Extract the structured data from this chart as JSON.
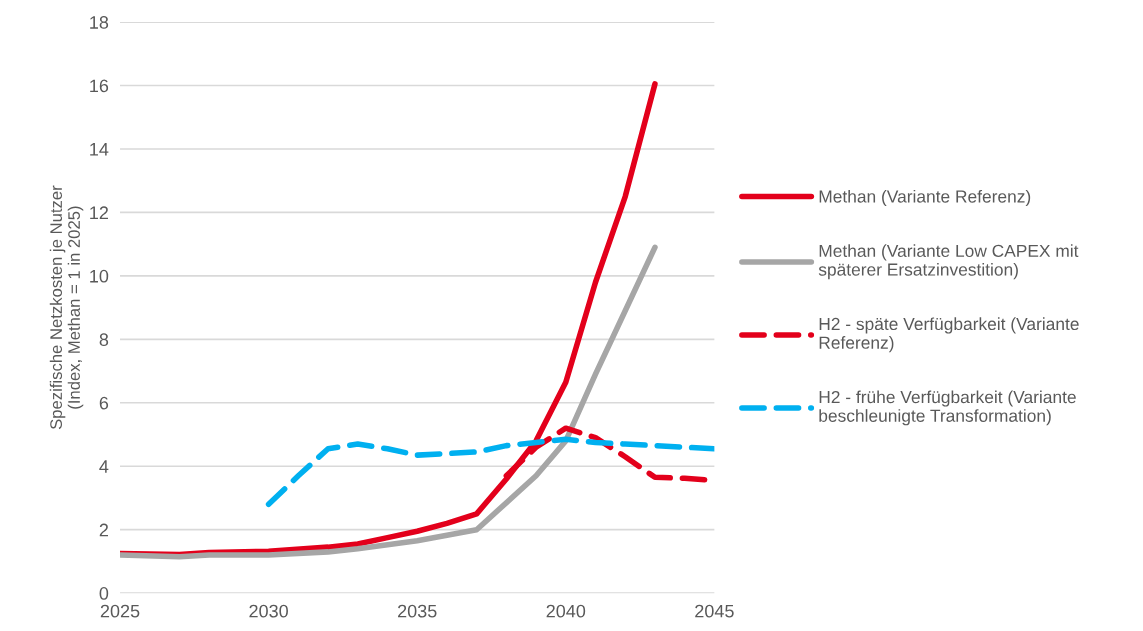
{
  "chart_data": {
    "type": "line",
    "ylabel": "Spezifische Netzkosten je Nutzer\n(Index, Methan = 1 in 2025)",
    "xlim": [
      2025,
      2045
    ],
    "xticks": [
      2025,
      2030,
      2035,
      2040,
      2045
    ],
    "ylim": [
      0,
      18
    ],
    "yticks": [
      0,
      2,
      4,
      6,
      8,
      10,
      12,
      14,
      16,
      18
    ],
    "grid": "y",
    "legend": "right",
    "marker": "none",
    "series": [
      {
        "name": "Methan (Variante Referenz)",
        "color": "#e3001b",
        "line_style": "solid",
        "x": [
          2025,
          2027,
          2028,
          2030,
          2032,
          2033,
          2034,
          2035,
          2036,
          2037,
          2038,
          2039,
          2040,
          2041,
          2042,
          2043
        ],
        "values": [
          1.25,
          1.22,
          1.28,
          1.32,
          1.45,
          1.55,
          1.75,
          1.95,
          2.2,
          2.5,
          3.6,
          4.8,
          6.65,
          9.8,
          12.5,
          16.05
        ]
      },
      {
        "name": "Methan (Variante Low CAPEX mit\nspäterer Ersatzinvestition)",
        "color": "#a6a6a6",
        "line_style": "solid",
        "x": [
          2025,
          2027,
          2028,
          2030,
          2032,
          2033,
          2035,
          2037,
          2039,
          2040,
          2041,
          2042,
          2043
        ],
        "values": [
          1.2,
          1.15,
          1.2,
          1.2,
          1.3,
          1.4,
          1.65,
          2.0,
          3.7,
          4.8,
          6.9,
          8.9,
          10.9
        ]
      },
      {
        "name": "H2 - späte Verfügbarkeit (Variante\nReferenz)",
        "color": "#e3001b",
        "line_style": "dashed",
        "x": [
          2038,
          2039,
          2040,
          2041,
          2042,
          2043,
          2044,
          2045
        ],
        "values": [
          3.7,
          4.6,
          5.2,
          4.9,
          4.3,
          3.65,
          3.62,
          3.55
        ]
      },
      {
        "name": "H2 - frühe Verfügbarkeit (Variante\nbeschleunigte Transformation)",
        "color": "#00b0f0",
        "line_style": "dashed",
        "x": [
          2030,
          2031,
          2032,
          2033,
          2034,
          2035,
          2036,
          2037,
          2038,
          2039,
          2040,
          2041,
          2042,
          2043,
          2044,
          2045
        ],
        "values": [
          2.8,
          3.7,
          4.55,
          4.7,
          4.55,
          4.35,
          4.4,
          4.45,
          4.65,
          4.75,
          4.85,
          4.75,
          4.7,
          4.65,
          4.6,
          4.55
        ]
      }
    ]
  }
}
